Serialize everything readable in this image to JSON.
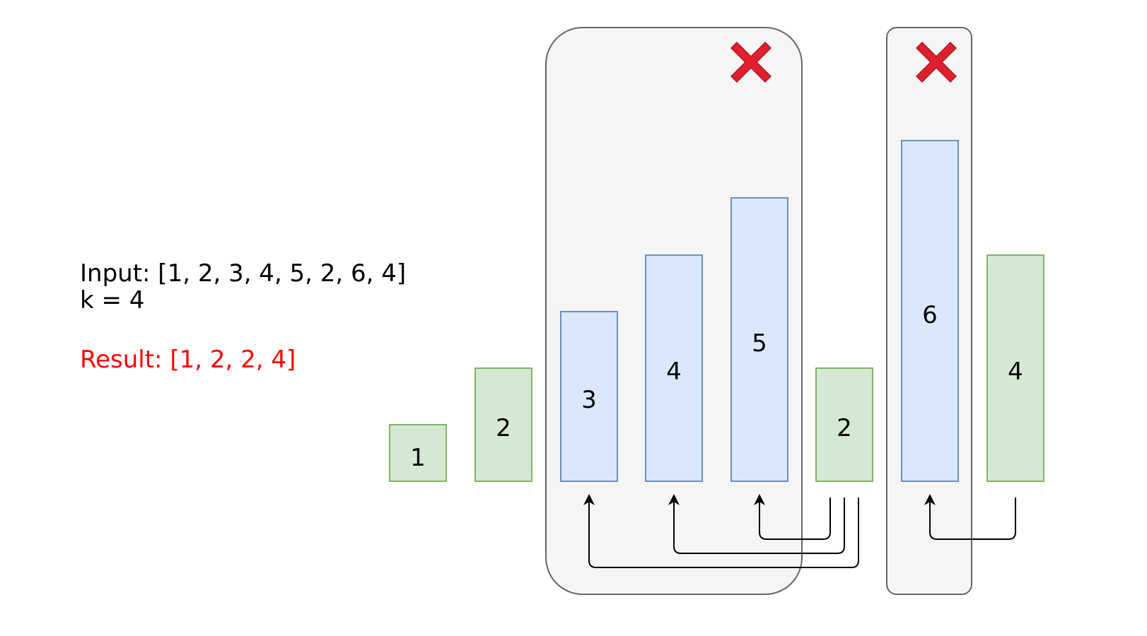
{
  "input_label": "Input: [1, 2, 3, 4, 5, 2, 6, 4]",
  "k_label": "k = 4",
  "result_label": "Result: [1, 2, 2, 4]",
  "bars": [
    {
      "value": "1",
      "kind": "kept"
    },
    {
      "value": "2",
      "kind": "kept"
    },
    {
      "value": "3",
      "kind": "removed"
    },
    {
      "value": "4",
      "kind": "removed"
    },
    {
      "value": "5",
      "kind": "removed"
    },
    {
      "value": "2",
      "kind": "kept"
    },
    {
      "value": "6",
      "kind": "removed"
    },
    {
      "value": "4",
      "kind": "kept"
    }
  ],
  "colors": {
    "kept_fill": "#d5e8d4",
    "kept_stroke": "#82b366",
    "removed_fill": "#dae8fc",
    "removed_stroke": "#6c8ebf",
    "group_fill": "#f5f5f5",
    "group_stroke": "#666666",
    "result_text": "#ff0000",
    "cross": "#e0202e"
  },
  "removed_groups": [
    {
      "members": [
        "3",
        "4",
        "5"
      ],
      "marker": "cross-icon"
    },
    {
      "members": [
        "6"
      ],
      "marker": "cross-icon"
    }
  ]
}
